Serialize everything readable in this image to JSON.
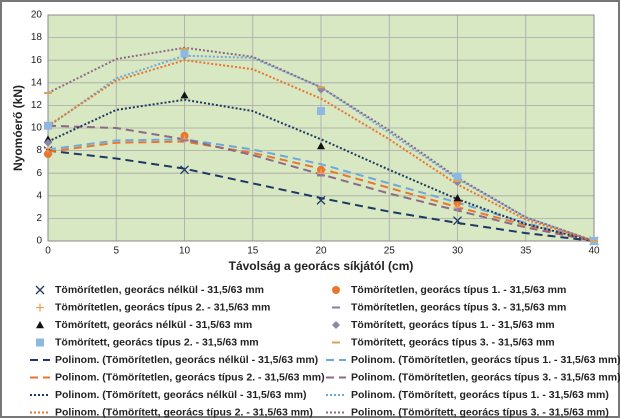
{
  "chart_data": {
    "type": "scatter",
    "x_label": "Távolság a georács síkjától (cm)",
    "y_label": "Nyomóerő (kN)",
    "xlim": [
      0,
      40
    ],
    "xticks": [
      0,
      5,
      10,
      15,
      20,
      25,
      30,
      35,
      40
    ],
    "ylim": [
      0,
      20
    ],
    "yticks": [
      0,
      2,
      4,
      6,
      8,
      10,
      12,
      14,
      16,
      18,
      20
    ],
    "grid": true,
    "background": "#d7e8c3",
    "series": [
      {
        "name": "Tömörítetlen, georács nélkül - 31,5/63 mm",
        "type": "scatter",
        "marker": "x",
        "color": "#1f3864",
        "x": [
          0,
          10,
          20,
          30,
          40
        ],
        "values": [
          8.0,
          6.3,
          3.6,
          1.8,
          0
        ]
      },
      {
        "name": "Tömörítetlen, georács típus 1. - 31,5/63 mm",
        "type": "scatter",
        "marker": "circle",
        "color": "#e8762c",
        "x": [
          0,
          10,
          20,
          30,
          40
        ],
        "values": [
          7.7,
          9.3,
          6.3,
          3.4,
          0
        ]
      },
      {
        "name": "Tömörítetlen, georács típus 2. - 31,5/63 mm",
        "type": "scatter",
        "marker": "plus",
        "color": "#f0a060",
        "x": [
          0,
          10,
          20,
          30,
          40
        ],
        "values": [
          8.2,
          9.0,
          6.0,
          3.0,
          0
        ]
      },
      {
        "name": "Tömörítetlen, georács típus 3. - 31,5/63 mm",
        "type": "scatter",
        "marker": "dash",
        "color": "#8e7aa0",
        "x": [
          0,
          10,
          20,
          30,
          40
        ],
        "values": [
          10.2,
          8.9,
          5.8,
          2.8,
          0
        ]
      },
      {
        "name": "Tömörített, georács nélkül - 31,5/63 mm",
        "type": "scatter",
        "marker": "triangle",
        "color": "#111111",
        "x": [
          0,
          10,
          20,
          30,
          40
        ],
        "values": [
          9.0,
          12.9,
          8.4,
          3.8,
          0
        ]
      },
      {
        "name": "Tömörített, georács típus 1. - 31,5/63 mm",
        "type": "scatter",
        "marker": "diamond",
        "color": "#8c86a8",
        "x": [
          0,
          10,
          20,
          30,
          40
        ],
        "values": [
          8.7,
          16.4,
          13.4,
          5.2,
          0
        ]
      },
      {
        "name": "Tömörített, georács típus 2. - 31,5/63 mm",
        "type": "scatter",
        "marker": "square",
        "color": "#8db8e0",
        "x": [
          0,
          10,
          20,
          30,
          40
        ],
        "values": [
          10.2,
          16.6,
          11.5,
          5.7,
          0
        ]
      },
      {
        "name": "Tömörített, georács típus 3. - 31,5/63 mm",
        "type": "scatter",
        "marker": "dash",
        "color": "#d9a35a",
        "x": [
          0,
          10,
          20,
          30,
          40
        ],
        "values": [
          13.1,
          17.0,
          13.6,
          5.3,
          0
        ]
      },
      {
        "name": "Polinom. (Tömörítetlen, georács nélkül - 31,5/63 mm)",
        "type": "line",
        "dash": "dash",
        "color": "#1f3864",
        "x": [
          0,
          5,
          10,
          15,
          20,
          25,
          30,
          35,
          40
        ],
        "values": [
          8.0,
          7.3,
          6.4,
          5.1,
          3.8,
          2.6,
          1.6,
          0.7,
          0
        ]
      },
      {
        "name": "Polinom. (Tömörítetlen, georács típus 1. - 31,5/63 mm)",
        "type": "line",
        "dash": "dash",
        "color": "#6fa8dc",
        "x": [
          0,
          5,
          10,
          15,
          20,
          25,
          30,
          35,
          40
        ],
        "values": [
          8.1,
          8.9,
          9.0,
          8.1,
          6.8,
          5.1,
          3.4,
          1.6,
          0
        ]
      },
      {
        "name": "Polinom. (Tömörítetlen, georács típus 2. - 31,5/63 mm)",
        "type": "line",
        "dash": "dash",
        "color": "#e8762c",
        "x": [
          0,
          5,
          10,
          15,
          20,
          25,
          30,
          35,
          40
        ],
        "values": [
          7.9,
          8.7,
          8.8,
          7.8,
          6.4,
          4.7,
          3.0,
          1.4,
          0
        ]
      },
      {
        "name": "Polinom. (Tömörítetlen, georács típus 3. - 31,5/63 mm)",
        "type": "line",
        "dash": "dash",
        "color": "#8e6a84",
        "x": [
          0,
          5,
          10,
          15,
          20,
          25,
          30,
          35,
          40
        ],
        "values": [
          10.2,
          10.0,
          9.0,
          7.6,
          5.9,
          4.2,
          2.7,
          1.2,
          0
        ]
      },
      {
        "name": "Polinom. (Tömörített, georács nélkül - 31,5/63 mm)",
        "type": "line",
        "dash": "dot",
        "color": "#1f3864",
        "x": [
          0,
          5,
          10,
          15,
          20,
          25,
          30,
          35,
          40
        ],
        "values": [
          8.8,
          11.6,
          12.5,
          11.5,
          9.0,
          6.3,
          3.7,
          1.5,
          0
        ]
      },
      {
        "name": "Polinom. (Tömörített, georács típus 1. - 31,5/63 mm)",
        "type": "line",
        "dash": "dot",
        "color": "#6fa8dc",
        "x": [
          0,
          5,
          10,
          15,
          20,
          25,
          30,
          35,
          40
        ],
        "values": [
          10.1,
          14.4,
          16.4,
          16.2,
          13.6,
          9.6,
          5.5,
          2.1,
          0
        ]
      },
      {
        "name": "Polinom. (Tömörített, georács típus 2. - 31,5/63 mm)",
        "type": "line",
        "dash": "dot",
        "color": "#e8762c",
        "x": [
          0,
          5,
          10,
          15,
          20,
          25,
          30,
          35,
          40
        ],
        "values": [
          10.2,
          14.2,
          16.0,
          15.2,
          12.6,
          9.0,
          5.0,
          1.9,
          0
        ]
      },
      {
        "name": "Polinom. (Tömörített, georács típus 3. - 31,5/63 mm)",
        "type": "line",
        "dash": "dot",
        "color": "#8e6a84",
        "x": [
          0,
          5,
          10,
          15,
          20,
          25,
          30,
          35,
          40
        ],
        "values": [
          13.1,
          16.1,
          17.1,
          16.3,
          13.6,
          9.8,
          5.6,
          2.1,
          0
        ]
      }
    ]
  }
}
